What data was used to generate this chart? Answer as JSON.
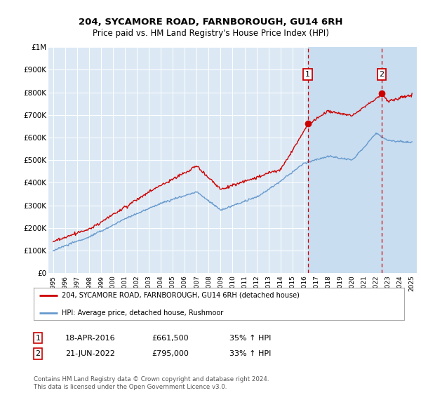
{
  "title": "204, SYCAMORE ROAD, FARNBOROUGH, GU14 6RH",
  "subtitle": "Price paid vs. HM Land Registry's House Price Index (HPI)",
  "ylim": [
    0,
    1000000
  ],
  "yticks": [
    0,
    100000,
    200000,
    300000,
    400000,
    500000,
    600000,
    700000,
    800000,
    900000,
    1000000
  ],
  "ytick_labels": [
    "£0",
    "£100K",
    "£200K",
    "£300K",
    "£400K",
    "£500K",
    "£600K",
    "£700K",
    "£800K",
    "£900K",
    "£1M"
  ],
  "legend_label_red": "204, SYCAMORE ROAD, FARNBOROUGH, GU14 6RH (detached house)",
  "legend_label_blue": "HPI: Average price, detached house, Rushmoor",
  "red_color": "#cc0000",
  "blue_color": "#6699cc",
  "bg_color": "#dce9f5",
  "bg_shade_color": "#c8ddf0",
  "transaction1_x": 2016.29,
  "transaction1_y": 661500,
  "transaction1_label": "1",
  "transaction2_x": 2022.47,
  "transaction2_y": 795000,
  "transaction2_label": "2",
  "footnote": "Contains HM Land Registry data © Crown copyright and database right 2024.\nThis data is licensed under the Open Government Licence v3.0.",
  "table_data": [
    [
      "1",
      "18-APR-2016",
      "£661,500",
      "35% ↑ HPI"
    ],
    [
      "2",
      "21-JUN-2022",
      "£795,000",
      "33% ↑ HPI"
    ]
  ],
  "xmin": 1995,
  "xmax": 2025
}
